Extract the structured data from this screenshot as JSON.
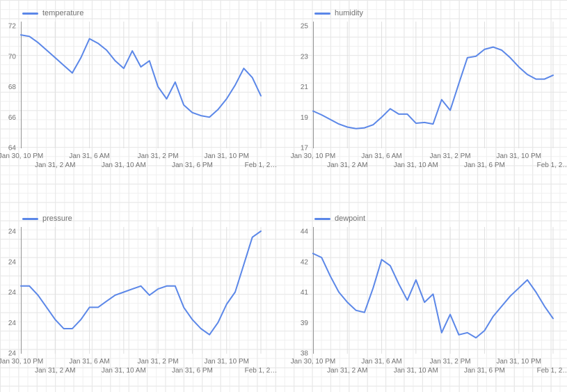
{
  "colors": {
    "line": "#5b87e8",
    "axis": "#949494",
    "tick_text": "#717171",
    "chart_grid": "#dfdfdf",
    "page_grid": "#e7e7e7",
    "background": "#ffffff"
  },
  "chart_data": [
    {
      "type": "line",
      "title": "temperature",
      "legend_position": "top-left",
      "grid": true,
      "xlabel": "",
      "ylabel": "",
      "ylim": [
        64,
        72
      ],
      "x_tick_labels": [
        "Jan 30, 10 PM",
        "Jan 31, 2 AM",
        "Jan 31, 6 AM",
        "Jan 31, 10 AM",
        "Jan 31, 2 PM",
        "Jan 31, 6 PM",
        "Jan 31, 10 PM",
        "Feb 1, 2…"
      ],
      "x_interval_hours": 1,
      "y_ticks": [
        {
          "value": 72,
          "label": "72"
        },
        {
          "value": 70,
          "label": "70"
        },
        {
          "value": 68,
          "label": "68"
        },
        {
          "value": 66,
          "label": "66"
        },
        {
          "value": 64,
          "label": "64"
        }
      ],
      "series": [
        {
          "name": "temperature",
          "values": [
            71.4,
            71.3,
            70.9,
            70.4,
            69.9,
            69.4,
            68.9,
            69.9,
            71.15,
            70.85,
            70.4,
            69.7,
            69.2,
            70.35,
            69.3,
            69.7,
            68.0,
            67.2,
            68.3,
            66.8,
            66.3,
            66.1,
            66.0,
            66.5,
            67.2,
            68.1,
            69.2,
            68.6,
            67.4
          ]
        }
      ]
    },
    {
      "type": "line",
      "title": "humidity",
      "legend_position": "top-left",
      "grid": true,
      "xlabel": "",
      "ylabel": "",
      "ylim": [
        17,
        25
      ],
      "x_tick_labels": [
        "Jan 30, 10 PM",
        "Jan 31, 2 AM",
        "Jan 31, 6 AM",
        "Jan 31, 10 AM",
        "Jan 31, 2 PM",
        "Jan 31, 6 PM",
        "Jan 31, 10 PM",
        "Feb 1, 2…"
      ],
      "x_interval_hours": 1,
      "y_ticks": [
        {
          "value": 25,
          "label": "25"
        },
        {
          "value": 23,
          "label": "23"
        },
        {
          "value": 21,
          "label": "21"
        },
        {
          "value": 19,
          "label": "19"
        },
        {
          "value": 17,
          "label": "17"
        }
      ],
      "series": [
        {
          "name": "humidity",
          "values": [
            19.4,
            19.15,
            18.85,
            18.55,
            18.35,
            18.25,
            18.3,
            18.5,
            19.0,
            19.55,
            19.2,
            19.2,
            18.6,
            18.65,
            18.55,
            20.15,
            19.45,
            21.2,
            22.9,
            23.0,
            23.45,
            23.6,
            23.4,
            22.9,
            22.3,
            21.8,
            21.5,
            21.5,
            21.75
          ]
        }
      ]
    },
    {
      "type": "line",
      "title": "pressure",
      "legend_position": "top-left",
      "grid": true,
      "xlabel": "",
      "ylabel": "",
      "ylim": [
        24.0,
        24.2
      ],
      "x_tick_labels": [
        "Jan 30, 10 PM",
        "Jan 31, 2 AM",
        "Jan 31, 6 AM",
        "Jan 31, 10 AM",
        "Jan 31, 2 PM",
        "Jan 31, 6 PM",
        "Jan 31, 10 PM",
        "Feb 1, 2…"
      ],
      "x_interval_hours": 1,
      "y_ticks": [
        {
          "value": 24.2,
          "label": "24"
        },
        {
          "value": 24.15,
          "label": "24"
        },
        {
          "value": 24.1,
          "label": "24"
        },
        {
          "value": 24.05,
          "label": "24"
        },
        {
          "value": 24.0,
          "label": "24"
        }
      ],
      "series": [
        {
          "name": "pressure",
          "values": [
            24.11,
            24.11,
            24.095,
            24.075,
            24.055,
            24.04,
            24.04,
            24.055,
            24.075,
            24.075,
            24.085,
            24.095,
            24.1,
            24.105,
            24.11,
            24.095,
            24.105,
            24.11,
            24.11,
            24.075,
            24.055,
            24.04,
            24.03,
            24.05,
            24.08,
            24.1,
            24.145,
            24.19,
            24.2
          ]
        }
      ]
    },
    {
      "type": "line",
      "title": "dewpoint",
      "legend_position": "top-left",
      "grid": true,
      "xlabel": "",
      "ylabel": "",
      "ylim": [
        38,
        44
      ],
      "x_tick_labels": [
        "Jan 30, 10 PM",
        "Jan 31, 2 AM",
        "Jan 31, 6 AM",
        "Jan 31, 10 AM",
        "Jan 31, 2 PM",
        "Jan 31, 6 PM",
        "Jan 31, 10 PM",
        "Feb 1, 2…"
      ],
      "x_interval_hours": 1,
      "y_ticks": [
        {
          "value": 44,
          "label": "44"
        },
        {
          "value": 42.5,
          "label": "42"
        },
        {
          "value": 41,
          "label": "41"
        },
        {
          "value": 39.5,
          "label": "39"
        },
        {
          "value": 38,
          "label": "38"
        }
      ],
      "series": [
        {
          "name": "dewpoint",
          "values": [
            42.9,
            42.7,
            41.8,
            41.0,
            40.5,
            40.1,
            40.0,
            41.2,
            42.6,
            42.3,
            41.4,
            40.6,
            41.6,
            40.5,
            40.9,
            39.0,
            39.9,
            38.9,
            39.0,
            38.75,
            39.1,
            39.8,
            40.3,
            40.8,
            41.2,
            41.6,
            41.0,
            40.3,
            39.7
          ]
        }
      ]
    }
  ]
}
